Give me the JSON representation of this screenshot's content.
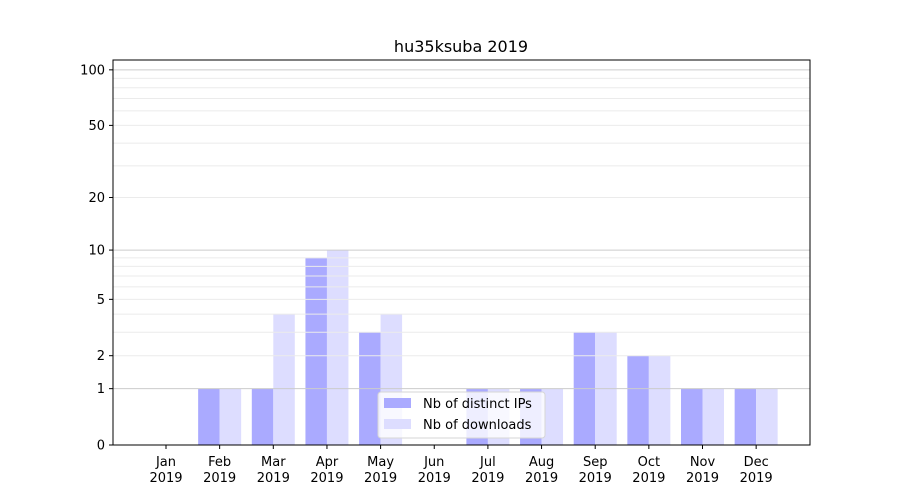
{
  "chart_data": {
    "type": "bar",
    "title": "hu35ksuba 2019",
    "xlabel": "",
    "ylabel": "",
    "yscale": "symlog (log10(1+x))",
    "ylim": [
      0,
      113
    ],
    "yticks": [
      0,
      1,
      2,
      5,
      10,
      20,
      50,
      100
    ],
    "grid": true,
    "legend_position": "lower center",
    "categories": [
      "Jan\n2019",
      "Feb\n2019",
      "Mar\n2019",
      "Apr\n2019",
      "May\n2019",
      "Jun\n2019",
      "Jul\n2019",
      "Aug\n2019",
      "Sep\n2019",
      "Oct\n2019",
      "Nov\n2019",
      "Dec\n2019"
    ],
    "series": [
      {
        "name": "Nb of distinct IPs",
        "color": "#aaaaff",
        "values": [
          0,
          1,
          1,
          9,
          3,
          0,
          1,
          1,
          3,
          2,
          1,
          1
        ]
      },
      {
        "name": "Nb of downloads",
        "color": "#ddddff",
        "values": [
          0,
          1,
          4,
          10,
          4,
          0,
          1,
          1,
          3,
          2,
          1,
          1
        ]
      }
    ]
  }
}
